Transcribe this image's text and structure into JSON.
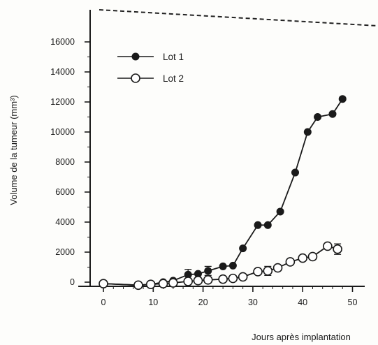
{
  "chart_data": {
    "type": "line",
    "xlabel": "Jours après implantation",
    "ylabel": "Volume de la tumeur (mm³)",
    "xlim": [
      -3,
      54
    ],
    "ylim": [
      -500,
      17800
    ],
    "x_ticks": [
      0,
      10,
      20,
      30,
      40,
      50
    ],
    "y_ticks": [
      0,
      2000,
      4000,
      6000,
      8000,
      10000,
      12000,
      14000,
      16000
    ],
    "x_tick_labels": [
      "0",
      "10",
      "20",
      "30",
      "40",
      "50"
    ],
    "y_tick_labels": [
      "0",
      "2000",
      "4000",
      "6000",
      "8000",
      "10000",
      "12000",
      "14000",
      "16000"
    ],
    "legend_position": "top-left",
    "grid": false,
    "series": [
      {
        "name": "Lot 1",
        "marker": "filled-circle",
        "color": "#1a1a1a",
        "points": [
          {
            "x": 0,
            "y": -100
          },
          {
            "x": 7,
            "y": -200
          },
          {
            "x": 9.5,
            "y": -150
          },
          {
            "x": 12,
            "y": 0
          },
          {
            "x": 14,
            "y": 100
          },
          {
            "x": 17,
            "y": 500,
            "err": 350
          },
          {
            "x": 19,
            "y": 550
          },
          {
            "x": 21,
            "y": 750,
            "err": 300
          },
          {
            "x": 24,
            "y": 1050
          },
          {
            "x": 26,
            "y": 1100
          },
          {
            "x": 28,
            "y": 2250
          },
          {
            "x": 31,
            "y": 3800
          },
          {
            "x": 33,
            "y": 3800
          },
          {
            "x": 35.5,
            "y": 4700
          },
          {
            "x": 38.5,
            "y": 7300
          },
          {
            "x": 41,
            "y": 10000
          },
          {
            "x": 43,
            "y": 11000
          },
          {
            "x": 46,
            "y": 11200
          },
          {
            "x": 48,
            "y": 12200
          }
        ]
      },
      {
        "name": "Lot 2",
        "marker": "open-circle",
        "color": "#1a1a1a",
        "points": [
          {
            "x": 0,
            "y": -100
          },
          {
            "x": 7,
            "y": -200
          },
          {
            "x": 9.5,
            "y": -150
          },
          {
            "x": 12,
            "y": -100
          },
          {
            "x": 14,
            "y": -50
          },
          {
            "x": 17,
            "y": 50
          },
          {
            "x": 19,
            "y": 100
          },
          {
            "x": 21,
            "y": 150
          },
          {
            "x": 24,
            "y": 200
          },
          {
            "x": 26,
            "y": 250
          },
          {
            "x": 28,
            "y": 350
          },
          {
            "x": 31,
            "y": 700
          },
          {
            "x": 33,
            "y": 750,
            "err": 300
          },
          {
            "x": 35,
            "y": 950
          },
          {
            "x": 37.5,
            "y": 1350
          },
          {
            "x": 40,
            "y": 1600
          },
          {
            "x": 42,
            "y": 1700
          },
          {
            "x": 45,
            "y": 2400
          },
          {
            "x": 47,
            "y": 2200,
            "err": 350
          }
        ]
      }
    ]
  }
}
